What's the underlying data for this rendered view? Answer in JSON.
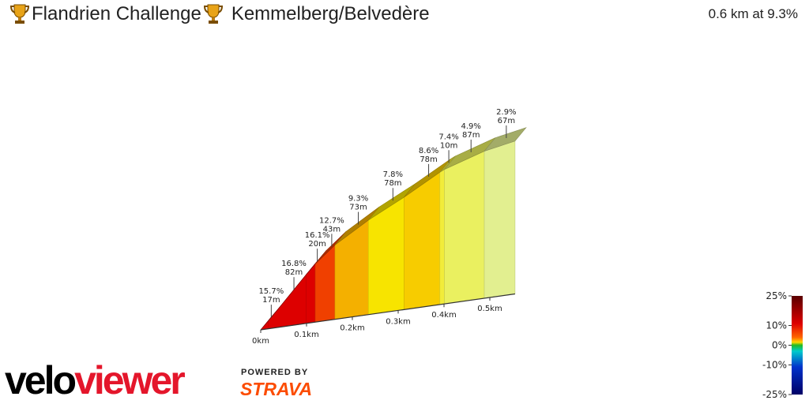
{
  "header": {
    "title_left": "Flandrien Challenge",
    "title_right": "Kemmelberg/Belvedère",
    "summary": "0.6 km at 9.3%",
    "icon": "trophy-icon"
  },
  "branding": {
    "logo_part1": "velo",
    "logo_part2": "viewer",
    "powered_by": "POWERED BY",
    "strava": "STRAVA"
  },
  "chart_data": {
    "type": "area",
    "title": "Kemmelberg/Belvedère",
    "segments": [
      {
        "grade": "15.7%",
        "length": "17m",
        "grade_value": 15.7,
        "length_m": 17
      },
      {
        "grade": "16.8%",
        "length": "82m",
        "grade_value": 16.8,
        "length_m": 82
      },
      {
        "grade": "16.1%",
        "length": "20m",
        "grade_value": 16.1,
        "length_m": 20
      },
      {
        "grade": "12.7%",
        "length": "43m",
        "grade_value": 12.7,
        "length_m": 43
      },
      {
        "grade": "9.3%",
        "length": "73m",
        "grade_value": 9.3,
        "length_m": 73
      },
      {
        "grade": "7.8%",
        "length": "78m",
        "grade_value": 7.8,
        "length_m": 78
      },
      {
        "grade": "8.6%",
        "length": "78m",
        "grade_value": 8.6,
        "length_m": 78
      },
      {
        "grade": "7.4%",
        "length": "10m",
        "grade_value": 7.4,
        "length_m": 10
      },
      {
        "grade": "4.9%",
        "length": "87m",
        "grade_value": 4.9,
        "length_m": 87
      },
      {
        "grade": "2.9%",
        "length": "67m",
        "grade_value": 2.9,
        "length_m": 67
      }
    ],
    "x_ticks": [
      "0km",
      "0.1km",
      "0.2km",
      "0.3km",
      "0.4km",
      "0.5km"
    ],
    "x_tick_values_km": [
      0,
      0.1,
      0.2,
      0.3,
      0.4,
      0.5
    ],
    "legend": {
      "labels": [
        "25%",
        "10%",
        "0%",
        "-10%",
        "-25%"
      ],
      "values": [
        25,
        10,
        0,
        -10,
        -25
      ],
      "colors": [
        "#5a0000",
        "#cc0000",
        "#ff4400",
        "#ffd700",
        "#22bb22",
        "#00cccc",
        "#0033cc",
        "#000066"
      ]
    },
    "grade_colors": {
      "16": "#dd0000",
      "13": "#f04000",
      "9": "#f4b000",
      "8": "#f7e400",
      "7": "#f2ec3a",
      "5": "#eaf060",
      "3": "#e2ef90"
    }
  }
}
